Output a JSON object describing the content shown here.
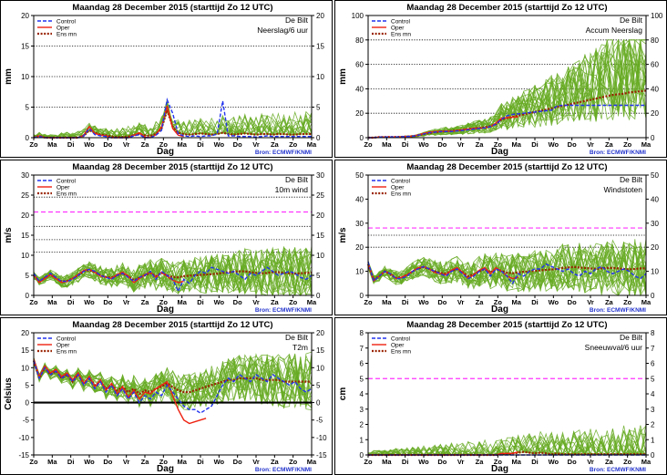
{
  "source": "Bron: ECMWF/KNMI",
  "colors": {
    "ensemble": "#66aa22",
    "control": "#2233ee",
    "oper": "#ee2211",
    "ens_mean": "#992200",
    "threshold": "#ff33ff",
    "axis": "#000000"
  },
  "legend_labels": {
    "control": "Control",
    "oper": "Oper",
    "ens_mean": "Ens mn"
  },
  "chart_data": [
    {
      "type": "line",
      "title": "Maandag  28 December  2015  (starttijd  Zo 12 UTC)",
      "station": "De Bilt",
      "variable": "Neerslag/6 uur",
      "xlabel": "Dag",
      "ylabel": "mm",
      "ylim": [
        0,
        20
      ],
      "yticks": [
        0,
        5,
        10,
        15,
        20
      ],
      "dotted_levels": [
        5,
        10,
        15
      ],
      "threshold": null,
      "zero_line": false,
      "days": [
        "Zo",
        "Ma",
        "Di",
        "Wo",
        "Do",
        "Vr",
        "Za",
        "Zo",
        "Ma",
        "Di",
        "Wo",
        "Do",
        "Vr",
        "Za",
        "Zo",
        "Ma"
      ],
      "series": {
        "control": [
          0,
          0.2,
          0,
          0,
          0,
          0,
          0,
          0,
          0,
          0.3,
          1.5,
          0.5,
          0.3,
          0.2,
          0,
          0,
          0,
          0,
          0.3,
          0.5,
          0,
          0,
          0.4,
          1.2,
          6.2,
          4,
          0.6,
          0.3,
          0.2,
          0.3,
          0.2,
          0.3,
          0.3,
          0.6,
          6,
          0.3,
          0.3,
          0.2,
          0.2,
          0.2,
          0.1,
          0.2,
          0.3,
          0.2,
          0.2,
          0.2,
          0.2,
          0.2,
          0.2,
          0.2,
          0.2
        ],
        "oper": [
          0,
          0.3,
          0,
          0,
          0,
          0,
          0,
          0,
          0,
          0.4,
          1.8,
          0.7,
          0.4,
          0.3,
          0,
          0,
          0,
          0,
          0.4,
          0.8,
          0.1,
          0,
          0.5,
          1.8,
          5.2,
          1.5,
          0.4,
          0.2
        ],
        "ens_mean": [
          0,
          0.3,
          0,
          0,
          0,
          0,
          0,
          0,
          0,
          0.3,
          1.2,
          0.8,
          0.5,
          0.4,
          0.2,
          0.1,
          0.1,
          0.2,
          0.4,
          0.6,
          0.4,
          0.3,
          0.6,
          1.5,
          4.5,
          1.8,
          0.8,
          0.6,
          0.5,
          0.6,
          0.7,
          0.6,
          0.5,
          0.6,
          0.8,
          0.6,
          0.5,
          0.6,
          0.7,
          0.6,
          0.5,
          0.6,
          0.6,
          0.5,
          0.6,
          0.6,
          0.5,
          0.5,
          0.6,
          0.6,
          0.6
        ]
      },
      "ensemble_range": [
        0,
        12
      ]
    },
    {
      "type": "line",
      "title": "Maandag  28 December  2015  (starttijd  Zo 12 UTC)",
      "station": "De Bilt",
      "variable": "Accum Neerslag",
      "xlabel": "Dag",
      "ylabel": "mm",
      "ylim": [
        0,
        100
      ],
      "yticks": [
        0,
        20,
        40,
        60,
        80,
        100
      ],
      "dotted_levels": [
        20,
        40,
        60,
        80
      ],
      "threshold": null,
      "zero_line": false,
      "days": [
        "Zo",
        "Ma",
        "Di",
        "Wo",
        "Do",
        "Vr",
        "Za",
        "Zo",
        "Ma",
        "Di",
        "Wo",
        "Do",
        "Vr",
        "Za",
        "Zo",
        "Ma"
      ],
      "series": {
        "control": [
          0,
          0,
          0.5,
          0.5,
          0.6,
          0.6,
          0.7,
          1,
          1.2,
          2,
          3,
          4,
          4.5,
          5,
          5,
          5,
          5.5,
          6,
          6.5,
          7,
          7.5,
          8,
          9,
          11,
          15,
          18,
          19,
          19.5,
          20,
          20.5,
          21,
          21.5,
          22,
          22.5,
          26,
          26.5,
          26.5,
          26.5,
          26.5,
          26.5,
          26.5,
          26.5,
          26.5,
          26.5,
          26.5,
          26.5,
          26.5,
          26.5,
          26.5,
          26.5,
          26.5
        ],
        "oper": [
          0,
          0,
          0.5,
          0.5,
          0.6,
          0.6,
          0.7,
          1,
          1.3,
          2.2,
          3.5,
          4.5,
          5,
          5.3,
          5.3,
          5.3,
          5.8,
          6.5,
          7,
          7.5,
          7.8,
          8,
          9,
          12,
          16,
          16.5,
          16.8,
          17
        ],
        "ens_mean": [
          0,
          0,
          0.5,
          0.5,
          0.6,
          0.6,
          0.7,
          1,
          1.2,
          2,
          3,
          3.8,
          4.5,
          5,
          5.3,
          5.5,
          5.8,
          6.3,
          7,
          7.5,
          8,
          8.5,
          9.5,
          11,
          15,
          16,
          17,
          18,
          19,
          20,
          21,
          22,
          23,
          24,
          25,
          26,
          27,
          28,
          29,
          30,
          31,
          32,
          33,
          34,
          35,
          35.5,
          36,
          37,
          37.5,
          38,
          38.5
        ]
      },
      "ensemble_range": [
        0,
        80
      ]
    },
    {
      "type": "line",
      "title": "Maandag  28 December  2015  (starttijd  Zo 12 UTC)",
      "station": "De Bilt",
      "variable": "10m wind",
      "xlabel": "Dag",
      "ylabel": "m/s",
      "ylim": [
        0,
        30
      ],
      "yticks": [
        0,
        5,
        10,
        15,
        20,
        25,
        30
      ],
      "dotted_levels": [
        10.8,
        13.9,
        17.2,
        24.5
      ],
      "threshold": 20.8,
      "zero_line": false,
      "days": [
        "Zo",
        "Ma",
        "Di",
        "Wo",
        "Do",
        "Vr",
        "Za",
        "Zo",
        "Ma",
        "Di",
        "Wo",
        "Do",
        "Vr",
        "Za",
        "Zo",
        "Ma"
      ],
      "series": {
        "control": [
          5.5,
          3.5,
          4.5,
          5.5,
          4.5,
          3.5,
          3.5,
          4,
          5,
          6,
          6.5,
          6,
          5,
          4.5,
          4,
          5,
          5.5,
          4.5,
          3.5,
          4.5,
          5,
          6,
          4,
          6,
          5,
          4,
          1,
          4,
          3,
          5,
          6,
          5.5,
          7,
          6.5,
          6,
          5.5,
          6,
          5,
          4,
          5.5,
          5,
          6,
          7,
          6,
          5,
          5.5,
          6,
          5.5,
          4.5,
          4,
          5
        ],
        "oper": [
          5.2,
          3.2,
          4.2,
          5.2,
          4.2,
          3.2,
          3.5,
          4.2,
          5.2,
          6.2,
          6.5,
          5.8,
          4.8,
          4.5,
          4.2,
          5.2,
          5.8,
          4.8,
          3.2,
          4.2,
          5.2,
          5.8,
          4.5,
          5.8,
          4.8,
          3.8,
          3.2,
          3.5
        ],
        "ens_mean": [
          5,
          3.5,
          4.3,
          5.2,
          4.3,
          3.5,
          3.6,
          4.2,
          5,
          6,
          6.3,
          5.8,
          5,
          4.6,
          4.4,
          5,
          5.5,
          4.8,
          3.8,
          4.4,
          5,
          5.6,
          4.8,
          5.6,
          5,
          4.6,
          4.5,
          4.8,
          4.9,
          5,
          5.1,
          5.2,
          5.3,
          5.4,
          5.6,
          5.8,
          5.9,
          6,
          6,
          5.8,
          5.6,
          5.5,
          5.6,
          5.8,
          5.8,
          5.6,
          5.5,
          5.4,
          5.5,
          5.6,
          5.7
        ]
      },
      "ensemble_range": [
        0,
        22.5
      ]
    },
    {
      "type": "line",
      "title": "Maandag  28 December  2015  (starttijd  Zo 12 UTC)",
      "station": "De Bilt",
      "variable": "Windstoten",
      "xlabel": "Dag",
      "ylabel": "m/s",
      "ylim": [
        0,
        50
      ],
      "yticks": [
        0,
        10,
        20,
        30,
        40,
        50
      ],
      "dotted_levels": [
        20,
        25
      ],
      "threshold": 28,
      "zero_line": false,
      "days": [
        "Zo",
        "Ma",
        "Di",
        "Wo",
        "Do",
        "Vr",
        "Za",
        "Zo",
        "Ma",
        "Di",
        "Wo",
        "Do",
        "Vr",
        "Za",
        "Zo",
        "Ma"
      ],
      "series": {
        "control": [
          14,
          6,
          8,
          10,
          9,
          7,
          7,
          8,
          10,
          11,
          12,
          11,
          10,
          9,
          8,
          10,
          11,
          9,
          7,
          8,
          10,
          11,
          8,
          11,
          10,
          8,
          5,
          9,
          8,
          10,
          11,
          11,
          13,
          12,
          11,
          10,
          11,
          9,
          8,
          10,
          9,
          11,
          12,
          10,
          9,
          10,
          11,
          10,
          8,
          7,
          9
        ],
        "oper": [
          13.5,
          6,
          8,
          10,
          9,
          7,
          7.5,
          8.5,
          10,
          11.5,
          12,
          11,
          9.5,
          9,
          8.5,
          10.5,
          11.5,
          9.5,
          7,
          8.5,
          10.5,
          11.5,
          9,
          11.5,
          10,
          8,
          7,
          7.5
        ],
        "ens_mean": [
          13,
          6.5,
          8,
          10,
          8.8,
          7.3,
          7.5,
          8.5,
          10,
          11.2,
          11.8,
          11,
          10,
          9.4,
          9,
          10.2,
          11,
          9.6,
          8,
          8.8,
          10,
          11,
          9.6,
          11,
          10.2,
          9.4,
          9.2,
          9.6,
          9.8,
          10,
          10.2,
          10.4,
          10.6,
          10.8,
          11,
          11.4,
          11.6,
          11.8,
          11.6,
          11.4,
          11.2,
          11,
          11.2,
          11.4,
          11.4,
          11.2,
          11,
          10.8,
          11,
          11.2,
          11.2
        ]
      },
      "ensemble_range": [
        0,
        43
      ]
    },
    {
      "type": "line",
      "title": "Maandag  28 December  2015  (starttijd  Zo 12 UTC)",
      "station": "De Bilt",
      "variable": "T2m",
      "xlabel": "Dag",
      "ylabel": "Celsius",
      "ylim": [
        -15,
        20
      ],
      "yticks": [
        -15,
        -10,
        -5,
        0,
        5,
        10,
        15,
        20
      ],
      "dotted_levels": [],
      "threshold": null,
      "zero_line": true,
      "days": [
        "Zo",
        "Ma",
        "Di",
        "Wo",
        "Do",
        "Vr",
        "Za",
        "Zo",
        "Ma",
        "Di",
        "Wo",
        "Do",
        "Vr",
        "Za",
        "Zo",
        "Ma"
      ],
      "series": {
        "control": [
          12,
          7,
          10,
          8,
          9,
          7,
          8,
          6,
          8,
          5,
          7,
          4,
          6,
          3,
          5,
          2,
          4,
          1,
          3,
          0,
          2,
          1,
          3,
          2,
          5,
          3,
          1,
          -1,
          -2,
          -2,
          -3,
          -2,
          -1,
          2,
          5,
          7,
          6,
          8,
          7,
          6,
          8,
          7,
          6,
          8,
          7,
          6,
          5,
          6,
          4,
          3,
          4
        ],
        "oper": [
          12.5,
          7.5,
          10.5,
          8.5,
          9.5,
          7.5,
          8.5,
          6.5,
          8.5,
          5.5,
          7.5,
          4.5,
          6.5,
          3.5,
          5.5,
          2.5,
          4.5,
          1.5,
          3.5,
          1,
          3,
          2.5,
          4,
          5,
          6,
          2,
          -2,
          -5,
          -6,
          -5.5,
          -5,
          -4.5
        ],
        "ens_mean": [
          12,
          7,
          10,
          8,
          9,
          7,
          8,
          6,
          8,
          5.5,
          7,
          5,
          6,
          4,
          5,
          3.5,
          4.5,
          3,
          4,
          2.5,
          3.5,
          3,
          4,
          4.5,
          5.5,
          4.5,
          3.5,
          3,
          3,
          3.5,
          4,
          4.5,
          5,
          5.5,
          6,
          6.5,
          6.5,
          7,
          7,
          7,
          7,
          6.5,
          6.5,
          6.5,
          6.5,
          6,
          6,
          6,
          6,
          6,
          6
        ]
      },
      "ensemble_range": [
        -11,
        16
      ]
    },
    {
      "type": "line",
      "title": "Maandag  28 December  2015  (starttijd  Zo 12 UTC)",
      "station": "De Bilt",
      "variable": "Sneeuwval/6 uur",
      "xlabel": "Dag",
      "ylabel": "cm",
      "ylim": [
        0,
        8
      ],
      "yticks": [
        0,
        1,
        2,
        3,
        4,
        5,
        6,
        7,
        8
      ],
      "dotted_levels": [],
      "threshold": 5,
      "zero_line": false,
      "days": [
        "Zo",
        "Ma",
        "Di",
        "Wo",
        "Do",
        "Vr",
        "Za",
        "Zo",
        "Ma",
        "Di",
        "Wo",
        "Do",
        "Vr",
        "Za",
        "Zo",
        "Ma"
      ],
      "series": {
        "control": [
          0,
          0,
          0,
          0,
          0,
          0,
          0,
          0,
          0,
          0,
          0,
          0,
          0,
          0,
          0,
          0,
          0,
          0,
          0,
          0,
          0,
          0,
          0,
          0,
          0,
          0,
          0,
          0,
          0,
          0,
          0,
          0,
          0,
          0,
          0,
          0,
          0,
          0,
          0,
          0,
          0,
          0,
          0,
          0,
          0,
          0,
          0,
          0,
          0,
          0,
          0
        ],
        "oper": [
          0,
          0,
          0,
          0,
          0,
          0,
          0,
          0,
          0,
          0,
          0,
          0,
          0,
          0,
          0,
          0,
          0,
          0,
          0,
          0,
          0,
          0,
          0,
          0,
          0.1,
          0.1,
          0.1,
          0.2
        ],
        "ens_mean": [
          0,
          0,
          0,
          0,
          0,
          0,
          0,
          0,
          0,
          0,
          0,
          0,
          0,
          0,
          0,
          0,
          0,
          0,
          0,
          0,
          0,
          0,
          0,
          0,
          0.05,
          0.05,
          0.1,
          0.15,
          0.2,
          0.15,
          0.1,
          0.15,
          0.1,
          0.05,
          0.1,
          0.05,
          0.05,
          0.05,
          0.05,
          0.05,
          0.05,
          0.05,
          0.05,
          0.05,
          0.05,
          0.05,
          0.05,
          0.05,
          0.05,
          0.05,
          0.05
        ]
      },
      "ensemble_range": [
        0,
        6.2
      ]
    }
  ]
}
